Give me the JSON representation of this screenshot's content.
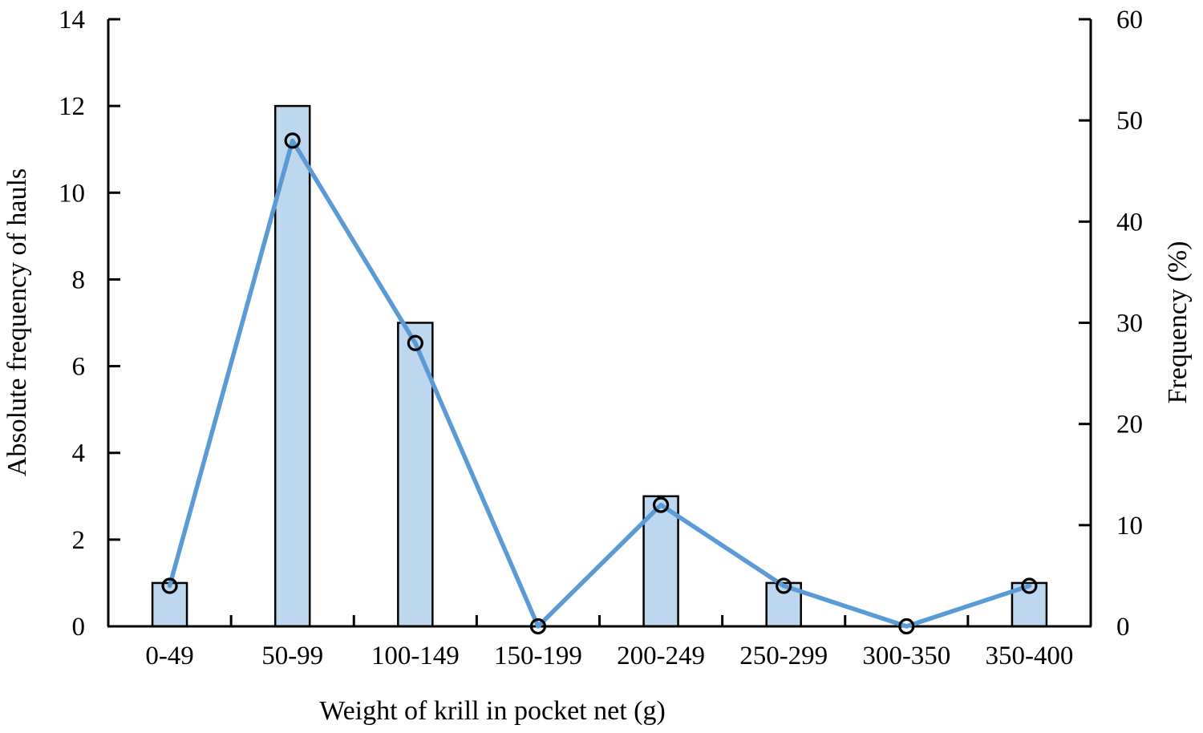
{
  "chart_data": {
    "type": "combo-bar-line",
    "categories": [
      "0-49",
      "50-99",
      "100-149",
      "150-199",
      "200-249",
      "250-299",
      "300-350",
      "350-400"
    ],
    "series": [
      {
        "name": "Absolute frequency of hauls",
        "type": "bar",
        "axis": "left",
        "values": [
          1,
          12,
          7,
          0,
          3,
          1,
          0,
          1
        ],
        "fill": "#BDD7EE",
        "stroke": "#000000"
      },
      {
        "name": "Frequency (%)",
        "type": "line",
        "axis": "right",
        "values": [
          4,
          48,
          28,
          0,
          12,
          4,
          0,
          4
        ],
        "color": "#5B9BD5",
        "marker": "open-circle",
        "marker_stroke": "#000000"
      }
    ],
    "left_axis": {
      "label": "Absolute frequency of hauls",
      "min": 0,
      "max": 14,
      "ticks": [
        0,
        2,
        4,
        6,
        8,
        10,
        12,
        14
      ]
    },
    "right_axis": {
      "label": "Frequency (%)",
      "min": 0,
      "max": 60,
      "ticks": [
        0,
        10,
        20,
        30,
        40,
        50,
        60
      ]
    },
    "x_axis": {
      "label": "Weight of krill in pocket net (g)"
    },
    "grid": "off",
    "legend": "none",
    "axis_color": "#000000",
    "background": "#ffffff"
  }
}
